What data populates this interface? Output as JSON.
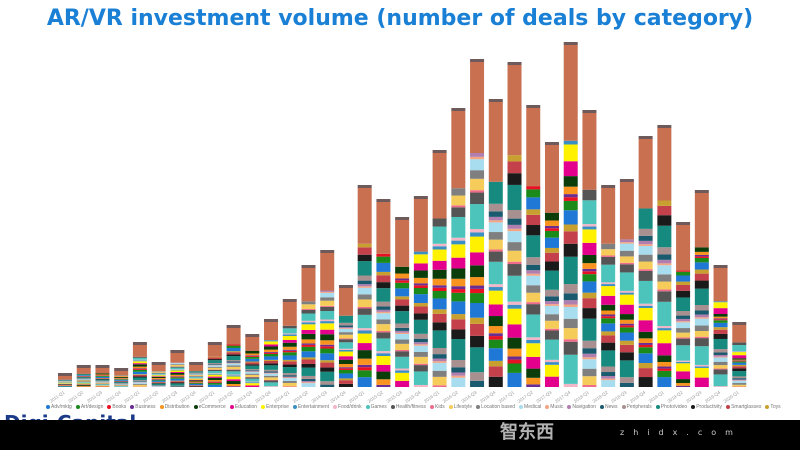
{
  "chart_data": {
    "type": "bar",
    "stacked": true,
    "title": "AR/VR investment volume (number of deals by category)",
    "categories": [
      "2011-Q1",
      "2011-Q2",
      "2011-Q3",
      "2011-Q4",
      "2012-Q1",
      "2012-Q2",
      "2012-Q3",
      "2012-Q4",
      "2013-Q1",
      "2013-Q2",
      "2013-Q3",
      "2013-Q4",
      "2014-Q1",
      "2014-Q2",
      "2014-Q3",
      "2014-Q4",
      "2015-Q1",
      "2015-Q2",
      "2015-Q3",
      "2015-Q4",
      "2016-Q1",
      "2016-Q2",
      "2016-Q3",
      "2016-Q4",
      "2017-Q1",
      "2017-Q2",
      "2017-Q3",
      "2017-Q4",
      "2018-Q1",
      "2018-Q2",
      "2018-Q3",
      "2018-Q4",
      "2019-Q1",
      "2019-Q2",
      "2019-Q3",
      "2019-Q4",
      "2020-Q1"
    ],
    "totals_relative": [
      11,
      19,
      19,
      16,
      42,
      22,
      34,
      22,
      42,
      59,
      50,
      65,
      85,
      119,
      134,
      99,
      199,
      185,
      167,
      188,
      234,
      276,
      325,
      285,
      322,
      279,
      242,
      342,
      274,
      199,
      205,
      248,
      259,
      162,
      194,
      119,
      62
    ],
    "y_axis_shown": false,
    "grid": false,
    "legend_placement": "bottom",
    "legend": [
      {
        "name": "Adv/mktg",
        "color": "#1f78d6"
      },
      {
        "name": "Art/design",
        "color": "#1a8a1a"
      },
      {
        "name": "Books",
        "color": "#e81123"
      },
      {
        "name": "Business",
        "color": "#6b2c91"
      },
      {
        "name": "Distribution",
        "color": "#f7931e"
      },
      {
        "name": "eCommerce",
        "color": "#0b3d0b"
      },
      {
        "name": "Education",
        "color": "#e3008c"
      },
      {
        "name": "Enterprise",
        "color": "#fff100"
      },
      {
        "name": "Entertainment",
        "color": "#3a8fc4"
      },
      {
        "name": "Food/drink",
        "color": "#f2b6c6"
      },
      {
        "name": "Games",
        "color": "#4cc4bc"
      },
      {
        "name": "Health/fitness",
        "color": "#555555"
      },
      {
        "name": "Kids",
        "color": "#f06b8a"
      },
      {
        "name": "Lifestyle",
        "color": "#f5cc5a"
      },
      {
        "name": "Location based",
        "color": "#7f7f7f"
      },
      {
        "name": "Medical",
        "color": "#a8dcef"
      },
      {
        "name": "Music",
        "color": "#f4a582"
      },
      {
        "name": "Navigation",
        "color": "#b07fb0"
      },
      {
        "name": "News",
        "color": "#1a5a6e"
      },
      {
        "name": "Peripherals",
        "color": "#a89090"
      },
      {
        "name": "Photo/video",
        "color": "#168a7e"
      },
      {
        "name": "Productivity",
        "color": "#1a1a1a"
      },
      {
        "name": "Smartglasses",
        "color": "#c4404a"
      },
      {
        "name": "Toys",
        "color": "#c8a030"
      }
    ]
  },
  "logo": "Digi-Capital",
  "watermark": {
    "site": "zhidx.com",
    "logo": "智东西"
  }
}
